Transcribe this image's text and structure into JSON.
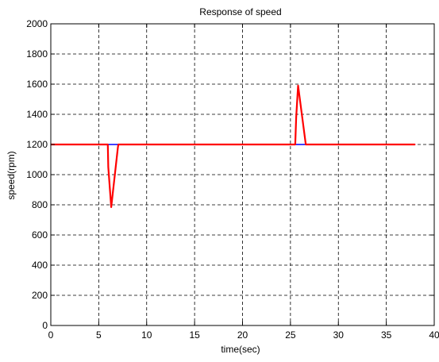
{
  "chart_data": {
    "type": "line",
    "title": "Response of speed",
    "xlabel": "time(sec)",
    "ylabel": "speed(rpm)",
    "xlim": [
      0,
      40
    ],
    "ylim": [
      0,
      2000
    ],
    "x_ticks": [
      0,
      5,
      10,
      15,
      20,
      25,
      30,
      35,
      40
    ],
    "y_ticks": [
      0,
      200,
      400,
      600,
      800,
      1000,
      1200,
      1400,
      1600,
      1800,
      2000
    ],
    "x_tick_labels": [
      "0",
      "5",
      "10",
      "15",
      "20",
      "25",
      "30",
      "35",
      "40"
    ],
    "y_tick_labels": [
      "0",
      "200",
      "400",
      "600",
      "800",
      "1000",
      "1200",
      "1400",
      "1600",
      "1800",
      "2000"
    ],
    "grid": true,
    "grid_style": "dashed",
    "series": [
      {
        "color": "#0000ff",
        "x": [
          0,
          38
        ],
        "y": [
          1200,
          1200
        ]
      },
      {
        "color": "#ff0000",
        "x": [
          0,
          5.95,
          6.0,
          6.3,
          7.0,
          7.05,
          25.5,
          25.6,
          25.8,
          26.6,
          26.65,
          38
        ],
        "y": [
          1200,
          1200,
          1050,
          785,
          1180,
          1200,
          1200,
          1380,
          1590,
          1200,
          1200,
          1200
        ]
      }
    ]
  }
}
